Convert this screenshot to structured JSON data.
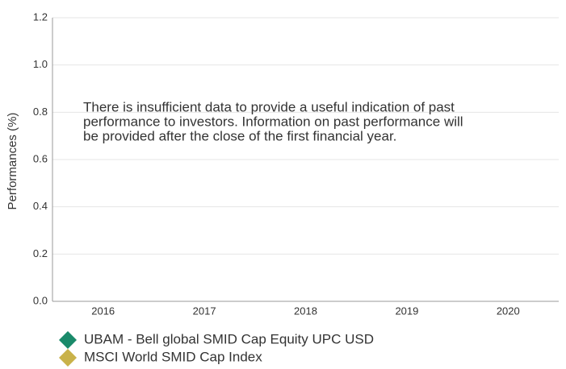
{
  "chart_data": {
    "type": "bar",
    "ylabel": "Performances (%)",
    "annotation": [
      "There is insufficient data to provide a useful indication of past",
      "performance to investors. Information on past performance will",
      "be provided after the close of the first financial year."
    ],
    "categories": [
      "2016",
      "2017",
      "2018",
      "2019",
      "2020"
    ],
    "series": [
      {
        "name": "UBAM - Bell global SMID Cap Equity UPC USD",
        "color": "#1a8a6a",
        "values": [
          null,
          null,
          null,
          null,
          null
        ]
      },
      {
        "name": "MSCI World SMID Cap Index",
        "color": "#c9b24a",
        "values": [
          null,
          null,
          null,
          null,
          null
        ]
      }
    ],
    "ylim": [
      0,
      1.2
    ],
    "yticks": [
      {
        "value": 0,
        "label": "0.0"
      },
      0.2,
      0.4,
      0.6,
      0.8,
      {
        "value": 1,
        "label": "1.0"
      },
      1.2
    ],
    "grid": true
  }
}
